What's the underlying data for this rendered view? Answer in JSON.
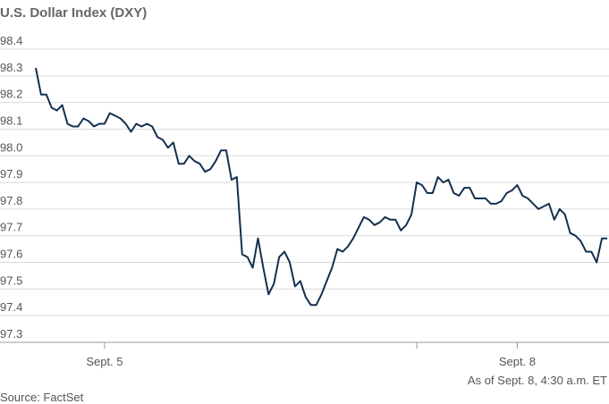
{
  "chart_data": {
    "type": "line",
    "title": "U.S. Dollar Index (DXY)",
    "note": "As of Sept. 8, 4:30 a.m. ET",
    "source": "Source: FactSet",
    "categories": [
      null,
      null,
      null,
      null,
      null,
      null,
      null,
      null,
      null,
      null,
      null,
      null,
      null,
      "Sept. 5",
      null,
      null,
      null,
      null,
      null,
      null,
      null,
      null,
      null,
      null,
      null,
      null,
      null,
      null,
      null,
      null,
      null,
      null,
      null,
      null,
      null,
      null,
      null,
      null,
      null,
      null,
      null,
      null,
      null,
      null,
      null,
      null,
      null,
      null,
      null,
      null,
      null,
      null,
      null,
      null,
      null,
      null,
      null,
      null,
      null,
      null,
      null,
      null,
      null,
      null,
      null,
      null,
      null,
      null,
      null,
      null,
      null,
      null,
      null,
      null,
      null,
      null,
      null,
      null,
      null,
      null,
      null,
      null,
      null,
      null,
      null,
      null,
      null,
      null,
      null,
      null,
      null,
      "Sept. 8",
      null,
      null,
      null,
      null,
      null,
      null,
      null,
      null,
      null,
      null,
      null,
      null,
      null,
      null,
      null,
      null,
      null
    ],
    "series": [
      {
        "name": "DXY",
        "color": "#14304f",
        "values": [
          98.33,
          98.23,
          98.23,
          98.18,
          98.17,
          98.19,
          98.12,
          98.11,
          98.11,
          98.14,
          98.13,
          98.11,
          98.12,
          98.12,
          98.16,
          98.15,
          98.14,
          98.12,
          98.09,
          98.12,
          98.11,
          98.12,
          98.11,
          98.07,
          98.06,
          98.03,
          98.05,
          97.97,
          97.97,
          98.0,
          97.98,
          97.97,
          97.94,
          97.95,
          97.98,
          98.02,
          98.02,
          97.91,
          97.92,
          97.63,
          97.62,
          97.58,
          97.69,
          97.58,
          97.48,
          97.52,
          97.62,
          97.64,
          97.6,
          97.51,
          97.53,
          97.47,
          97.44,
          97.44,
          97.48,
          97.53,
          97.58,
          97.65,
          97.64,
          97.66,
          97.69,
          97.73,
          97.77,
          97.76,
          97.74,
          97.75,
          97.77,
          97.76,
          97.76,
          97.72,
          97.74,
          97.78,
          97.9,
          97.89,
          97.86,
          97.86,
          97.92,
          97.9,
          97.91,
          97.86,
          97.85,
          97.88,
          97.88,
          97.84,
          97.84,
          97.84,
          97.82,
          97.82,
          97.83,
          97.86,
          97.87,
          97.89,
          97.85,
          97.84,
          97.82,
          97.8,
          97.81,
          97.82,
          97.76,
          97.8,
          97.78,
          97.71,
          97.7,
          97.68,
          97.64,
          97.64,
          97.6,
          97.69,
          97.69
        ]
      }
    ],
    "xticks": [
      13,
      72,
      91
    ],
    "ylim": [
      97.3,
      98.4
    ],
    "yticks": [
      98.4,
      98.3,
      98.2,
      98.1,
      {
        "value": 98,
        "label": "98.0"
      },
      97.9,
      97.8,
      97.7,
      97.6,
      97.5,
      97.4,
      97.3
    ],
    "grid": true
  }
}
